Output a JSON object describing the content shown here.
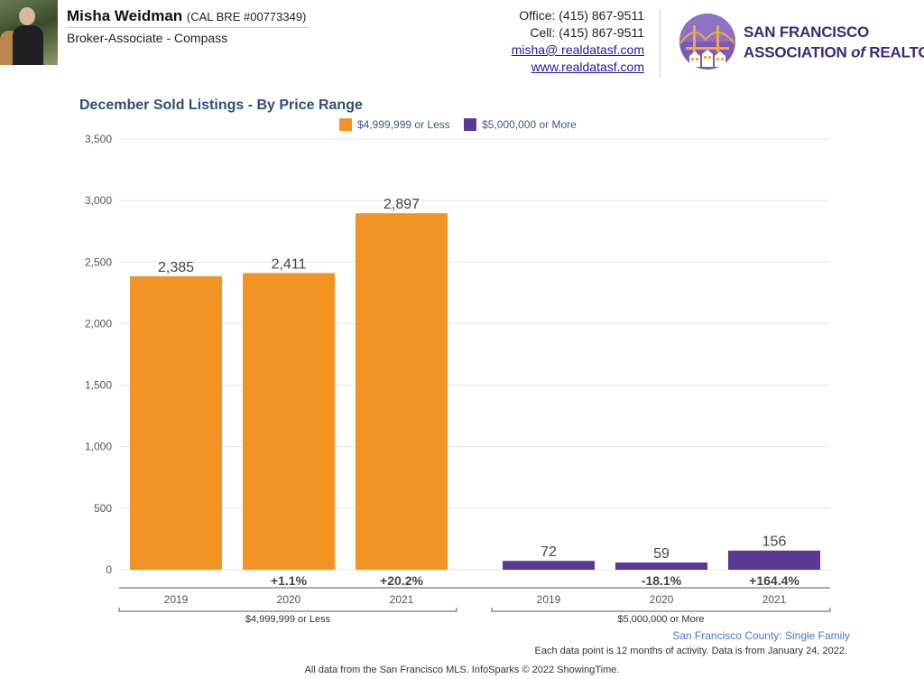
{
  "agent": {
    "name": "Misha Weidman",
    "license": "(CAL BRE #00773349)",
    "role": "Broker-Associate - Compass"
  },
  "contact": {
    "office": "Office: (415) 867-9511",
    "cell": "Cell: (415) 867-9511",
    "email": "misha@ realdatasf.com",
    "website": "www.realdatasf.com"
  },
  "association": {
    "line1": "SAN FRANCISCO",
    "line2_pre": "ASSOCIATION ",
    "line2_of": "of",
    "line2_post": " REALTORS",
    "line2_mark": "®"
  },
  "colors": {
    "under": "#f29424",
    "over": "#5a3a96",
    "title": "#2e4f7a"
  },
  "chart_data": {
    "type": "bar",
    "title": "December Sold Listings - By Price Range",
    "ylim": [
      0,
      3500
    ],
    "y_ticks": [
      0,
      500,
      1000,
      1500,
      2000,
      2500,
      3000,
      3500
    ],
    "y_tick_labels": [
      "0",
      "500",
      "1,000",
      "1,500",
      "2,000",
      "2,500",
      "3,000",
      "3,500"
    ],
    "grid": true,
    "legend_position": "top",
    "groups": [
      {
        "name": "$4,999,999 or Less",
        "color": "#f29424",
        "categories": [
          "2019",
          "2020",
          "2021"
        ],
        "values": [
          2385,
          2411,
          2897
        ],
        "value_labels": [
          "2,385",
          "2,411",
          "2,897"
        ],
        "changes": [
          "",
          "+1.1%",
          "+20.2%"
        ]
      },
      {
        "name": "$5,000,000 or More",
        "color": "#5a3a96",
        "categories": [
          "2019",
          "2020",
          "2021"
        ],
        "values": [
          72,
          59,
          156
        ],
        "value_labels": [
          "72",
          "59",
          "156"
        ],
        "changes": [
          "",
          "-18.1%",
          "+164.4%"
        ]
      }
    ]
  },
  "footer": {
    "area": "San Francisco County: Single Family",
    "note": "Each data point is 12 months of activity. Data is from January 24, 2022.",
    "source": "All data from the San Francisco MLS. InfoSparks © 2022 ShowingTime."
  }
}
